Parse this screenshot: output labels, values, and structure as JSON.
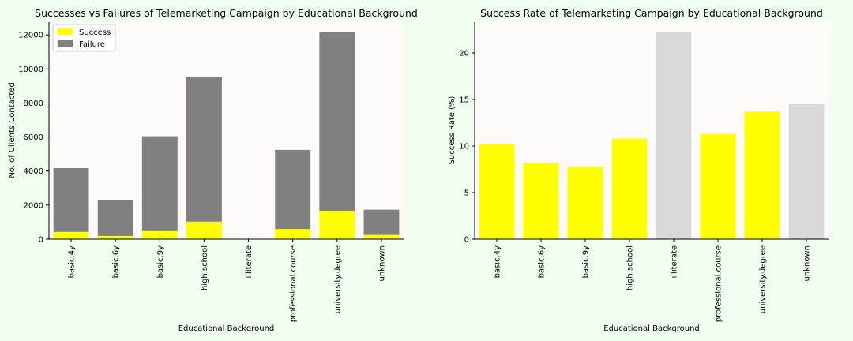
{
  "chart_data": [
    {
      "type": "bar",
      "stacked": true,
      "title": "Successes vs Failures of Telemarketing Campaign by Educational Background",
      "xlabel": "Educational Background",
      "ylabel": "No. of Clients Contacted",
      "categories": [
        "basic.4y",
        "basic.6y",
        "basic.9y",
        "high.school",
        "illiterate",
        "professional.course",
        "university.degree",
        "unknown"
      ],
      "ylim": [
        0,
        12750
      ],
      "yticks": [
        0,
        2000,
        4000,
        6000,
        8000,
        10000,
        12000
      ],
      "grid": false,
      "legend_position": "top-left",
      "series": [
        {
          "name": "Success",
          "color": "#ffff00",
          "values": [
            428,
            188,
            473,
            1031,
            4,
            595,
            1670,
            251
          ]
        },
        {
          "name": "Failure",
          "color": "#808080",
          "values": [
            3748,
            2104,
            5572,
            8484,
            14,
            4648,
            10498,
            1480
          ]
        }
      ]
    },
    {
      "type": "bar",
      "title": "Success Rate of Telemarketing Campaign by Educational Background",
      "xlabel": "Educational Background",
      "ylabel": "Success Rate (%)",
      "categories": [
        "basic.4y",
        "basic.6y",
        "basic.9y",
        "high.school",
        "illiterate",
        "professional.course",
        "university.degree",
        "unknown"
      ],
      "ylim": [
        0,
        23.3
      ],
      "yticks": [
        0,
        5,
        10,
        15,
        20
      ],
      "grid": false,
      "values": [
        10.2,
        8.2,
        7.8,
        10.8,
        22.2,
        11.3,
        13.7,
        14.5
      ],
      "colors": [
        "#ffff00",
        "#ffff00",
        "#ffff00",
        "#ffff00",
        "#d9d9d9",
        "#ffff00",
        "#ffff00",
        "#d9d9d9"
      ]
    }
  ],
  "style": {
    "plot_background": "#fffafa",
    "page_background": "#f0fff0"
  }
}
